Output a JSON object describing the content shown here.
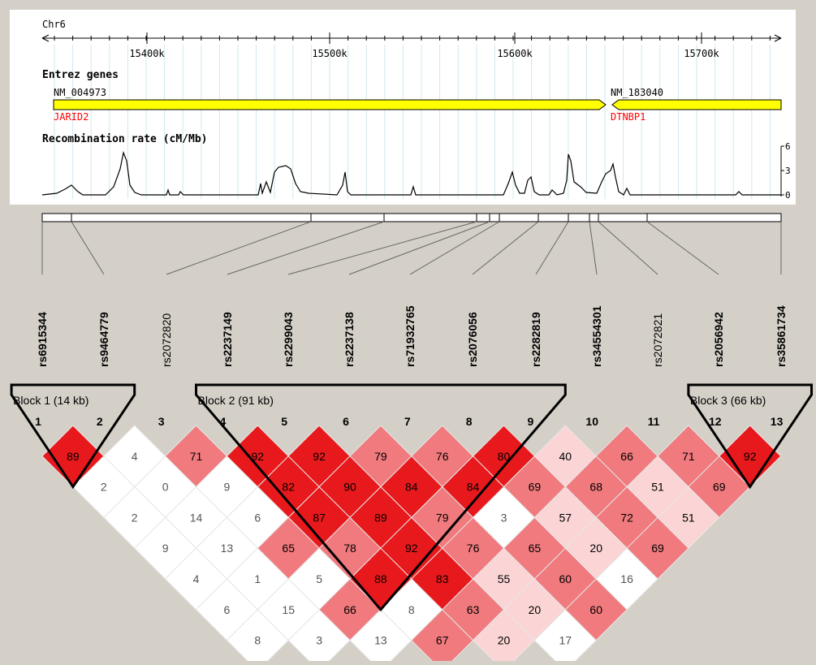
{
  "browser": {
    "chromosome": "Chr6",
    "ticks": [
      "15400k",
      "15500k",
      "15600k",
      "15700k"
    ],
    "genes_title": "Entrez genes",
    "genes": [
      {
        "accession": "NM_004973",
        "symbol": "JARID2",
        "strand": "+"
      },
      {
        "accession": "NM_183040",
        "symbol": "DTNBP1",
        "strand": "-"
      }
    ],
    "recomb_title": "Recombination rate (cM/Mb)",
    "recomb_scale": [
      "6",
      "3",
      "0"
    ],
    "colors": {
      "gene_fill": "#ffff00",
      "gene_label": "#ff0000"
    }
  },
  "snps": [
    {
      "id": "rs6915344",
      "tagged": true
    },
    {
      "id": "rs9464779",
      "tagged": true
    },
    {
      "id": "rs2072820",
      "tagged": false
    },
    {
      "id": "rs2237149",
      "tagged": true
    },
    {
      "id": "rs2299043",
      "tagged": true
    },
    {
      "id": "rs2237138",
      "tagged": true
    },
    {
      "id": "rs71932765",
      "tagged": true
    },
    {
      "id": "rs2076056",
      "tagged": true
    },
    {
      "id": "rs2282819",
      "tagged": true
    },
    {
      "id": "rs34554301",
      "tagged": true
    },
    {
      "id": "rs2072821",
      "tagged": false
    },
    {
      "id": "rs2056942",
      "tagged": true
    },
    {
      "id": "rs35861734",
      "tagged": true
    }
  ],
  "marker_numbers": [
    "1",
    "2",
    "3",
    "4",
    "5",
    "6",
    "7",
    "8",
    "9",
    "10",
    "11",
    "12",
    "13"
  ],
  "blocks": [
    {
      "label": "Block 1 (14 kb)",
      "first": 1,
      "last": 2
    },
    {
      "label": "Block 2 (91 kb)",
      "first": 4,
      "last": 9
    },
    {
      "label": "Block 3 (66 kb)",
      "first": 12,
      "last": 13
    }
  ],
  "ld_rows": [
    [
      "89",
      "4",
      "71",
      "92",
      "92",
      "79",
      "76",
      "80",
      "40",
      "66",
      "71",
      "92"
    ],
    [
      "2",
      "0",
      "9",
      "82",
      "90",
      "84",
      "84",
      "69",
      "68",
      "51",
      "69"
    ],
    [
      "2",
      "14",
      "6",
      "87",
      "89",
      "79",
      "3",
      "57",
      "72",
      "51"
    ],
    [
      "9",
      "13",
      "65",
      "78",
      "92",
      "76",
      "65",
      "20",
      "69"
    ],
    [
      "4",
      "1",
      "5",
      "88",
      "83",
      "55",
      "60",
      "16"
    ],
    [
      "6",
      "15",
      "66",
      "8",
      "63",
      "20",
      "60"
    ],
    [
      "8",
      "3",
      "13",
      "67",
      "20",
      "17"
    ]
  ],
  "ld_colors": {
    "high": "#e8191c",
    "mid": "#f07a7d",
    "low": "#fbd5d6",
    "none": "#ffffff"
  }
}
